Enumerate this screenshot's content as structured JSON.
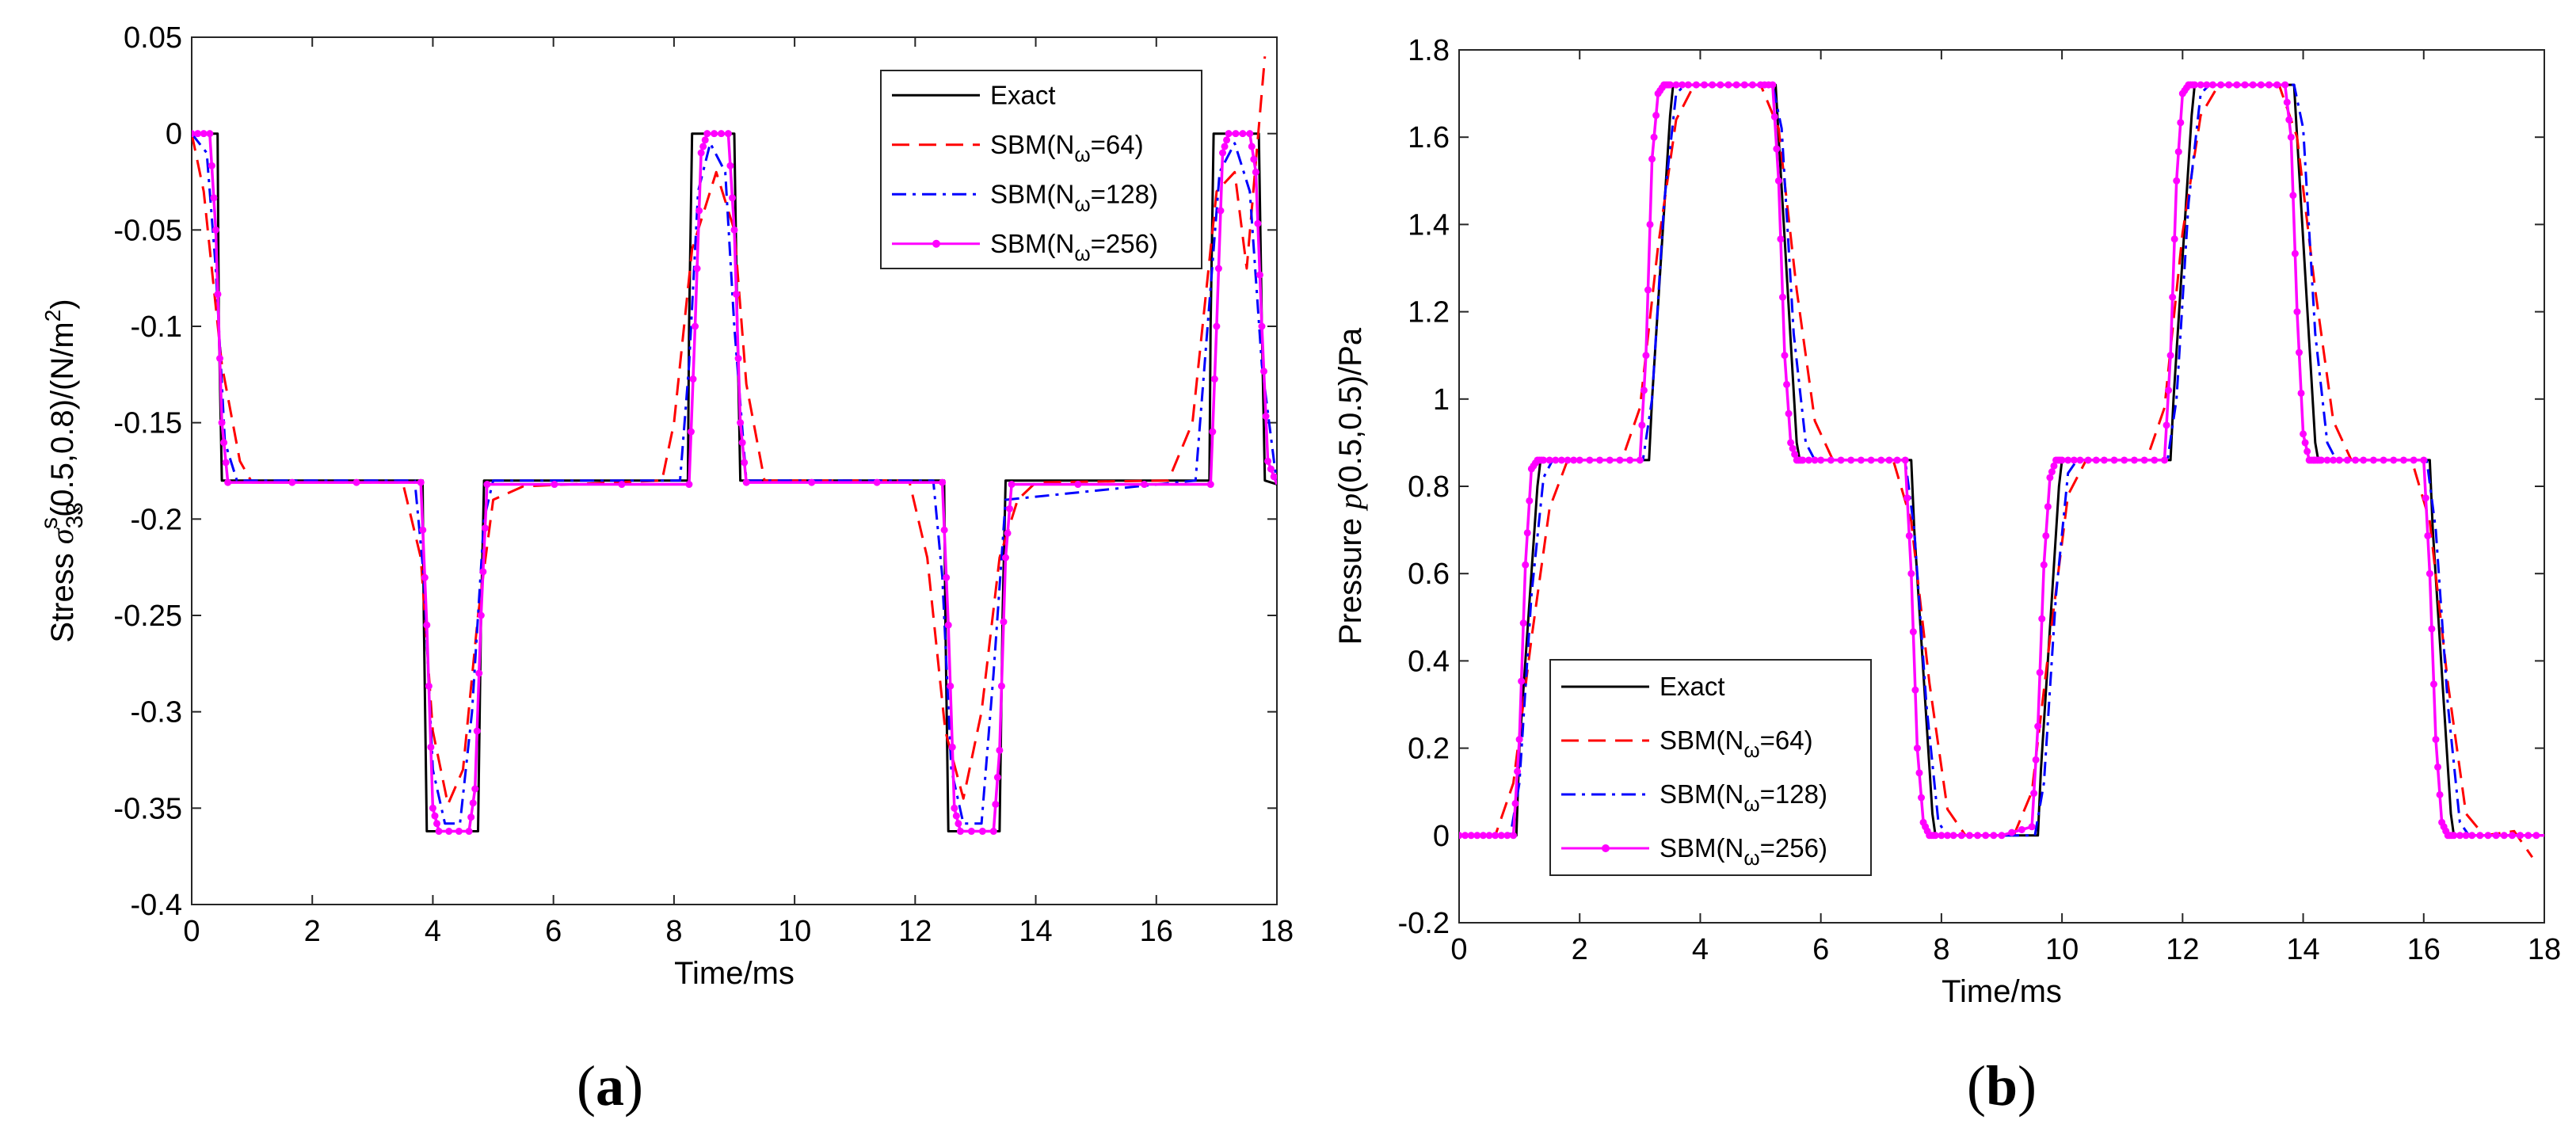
{
  "chart_data": [
    {
      "type": "line",
      "panel_label": "(a)",
      "xlabel": "Time/ms",
      "ylabel_parts": {
        "prefix": "Stress ",
        "symbol": "σ",
        "subscript": "33",
        "superscript": "s",
        "suffix": "(0.5,0.8)/(N/m",
        "unit_power": "2",
        "close": ")"
      },
      "xlim": [
        0,
        18
      ],
      "ylim": [
        -0.4,
        0.05
      ],
      "xticks": [
        0,
        2,
        4,
        6,
        8,
        10,
        12,
        14,
        16,
        18
      ],
      "xtick_labels": [
        "0",
        "2",
        "4",
        "6",
        "8",
        "10",
        "12",
        "14",
        "16",
        "18"
      ],
      "yticks": [
        -0.4,
        -0.35,
        -0.3,
        -0.25,
        -0.2,
        -0.15,
        -0.1,
        -0.05,
        0,
        0.05
      ],
      "ytick_labels": [
        "-0.4",
        "-0.35",
        "-0.3",
        "-0.25",
        "-0.2",
        "-0.15",
        "-0.1",
        "-0.05",
        "0",
        "0.05"
      ],
      "legend": {
        "position": "top-right"
      },
      "series": [
        {
          "name": "Exact",
          "label_parts": [
            "Exact"
          ],
          "color": "#000000",
          "style": "solid",
          "x": [
            0,
            0.43,
            0.45,
            0.5,
            3.83,
            3.85,
            3.9,
            4.75,
            4.8,
            4.85,
            8.23,
            8.25,
            8.3,
            9.0,
            9.05,
            9.1,
            12.48,
            12.5,
            12.55,
            13.4,
            13.45,
            13.5,
            16.88,
            16.9,
            16.95,
            17.7,
            17.75,
            17.8,
            18
          ],
          "y": [
            0,
            0,
            -0.1,
            -0.18,
            -0.18,
            -0.25,
            -0.362,
            -0.362,
            -0.25,
            -0.18,
            -0.18,
            -0.1,
            0,
            0,
            -0.1,
            -0.18,
            -0.18,
            -0.25,
            -0.362,
            -0.362,
            -0.25,
            -0.18,
            -0.18,
            -0.1,
            0,
            0,
            -0.1,
            -0.18,
            -0.182
          ]
        },
        {
          "name": "SBM(Nω=64)",
          "label_parts": [
            "SBM(N",
            "ω",
            "=64)"
          ],
          "color": "#ff0000",
          "style": "dashed",
          "x": [
            0,
            0.2,
            0.5,
            0.8,
            1.0,
            3.5,
            3.8,
            4.0,
            4.25,
            4.5,
            4.75,
            5.0,
            5.5,
            7.8,
            8.0,
            8.3,
            8.7,
            9.0,
            9.2,
            9.5,
            11.9,
            12.2,
            12.5,
            12.8,
            13.1,
            13.4,
            13.7,
            14.0,
            16.2,
            16.6,
            17.0,
            17.3,
            17.5,
            17.8
          ],
          "y": [
            0,
            -0.03,
            -0.12,
            -0.17,
            -0.181,
            -0.181,
            -0.22,
            -0.31,
            -0.348,
            -0.33,
            -0.25,
            -0.19,
            -0.183,
            -0.18,
            -0.15,
            -0.06,
            -0.02,
            -0.05,
            -0.13,
            -0.18,
            -0.18,
            -0.22,
            -0.31,
            -0.345,
            -0.3,
            -0.22,
            -0.19,
            -0.181,
            -0.18,
            -0.15,
            -0.03,
            -0.02,
            -0.07,
            0.04
          ]
        },
        {
          "name": "SBM(Nω=128)",
          "label_parts": [
            "SBM(N",
            "ω",
            "=128)"
          ],
          "color": "#0000ff",
          "style": "dashdot",
          "x": [
            0,
            0.25,
            0.4,
            0.55,
            0.75,
            3.7,
            3.85,
            4.0,
            4.2,
            4.45,
            4.65,
            4.85,
            5.0,
            8.1,
            8.25,
            8.4,
            8.6,
            8.85,
            9.0,
            9.2,
            12.3,
            12.45,
            12.6,
            12.8,
            13.1,
            13.3,
            13.5,
            16.65,
            16.85,
            17.05,
            17.3,
            17.55,
            17.75,
            18
          ],
          "y": [
            0,
            -0.01,
            -0.07,
            -0.16,
            -0.18,
            -0.18,
            -0.23,
            -0.33,
            -0.358,
            -0.358,
            -0.3,
            -0.2,
            -0.18,
            -0.18,
            -0.12,
            -0.03,
            -0.005,
            -0.02,
            -0.1,
            -0.18,
            -0.18,
            -0.23,
            -0.33,
            -0.358,
            -0.358,
            -0.28,
            -0.19,
            -0.18,
            -0.1,
            -0.02,
            -0.005,
            -0.03,
            -0.12,
            -0.182
          ]
        },
        {
          "name": "SBM(Nω=256)",
          "label_parts": [
            "SBM(N",
            "ω",
            "=256)"
          ],
          "color": "#ff00ff",
          "style": "solid-dots",
          "x": [
            0,
            0.3,
            0.4,
            0.5,
            0.6,
            3.8,
            3.9,
            4.0,
            4.1,
            4.6,
            4.7,
            4.8,
            4.9,
            8.25,
            8.35,
            8.45,
            8.55,
            8.9,
            9.0,
            9.1,
            9.2,
            12.45,
            12.55,
            12.65,
            12.75,
            13.3,
            13.4,
            13.5,
            13.6,
            16.9,
            17.0,
            17.1,
            17.2,
            17.55,
            17.65,
            17.75,
            17.85,
            18
          ],
          "y": [
            0,
            0,
            -0.05,
            -0.15,
            -0.181,
            -0.181,
            -0.255,
            -0.35,
            -0.362,
            -0.362,
            -0.34,
            -0.25,
            -0.182,
            -0.182,
            -0.1,
            -0.01,
            0,
            0,
            -0.05,
            -0.15,
            -0.181,
            -0.181,
            -0.255,
            -0.35,
            -0.362,
            -0.362,
            -0.32,
            -0.22,
            -0.182,
            -0.182,
            -0.1,
            -0.01,
            0,
            0,
            -0.02,
            -0.1,
            -0.17,
            -0.182
          ]
        }
      ]
    },
    {
      "type": "line",
      "panel_label": "(b)",
      "xlabel": "Time/ms",
      "ylabel_parts": {
        "prefix": "Pressure ",
        "symbol": "p",
        "suffix": "(0.5,0.5)/Pa"
      },
      "xlim": [
        0,
        18
      ],
      "ylim": [
        -0.2,
        1.8
      ],
      "xticks": [
        0,
        2,
        4,
        6,
        8,
        10,
        12,
        14,
        16,
        18
      ],
      "xtick_labels": [
        "0",
        "2",
        "4",
        "6",
        "8",
        "10",
        "12",
        "14",
        "16",
        "18"
      ],
      "yticks": [
        -0.2,
        0,
        0.2,
        0.4,
        0.6,
        0.8,
        1,
        1.2,
        1.4,
        1.6,
        1.8
      ],
      "ytick_labels": [
        "-0.2",
        "0",
        "0.2",
        "0.4",
        "0.6",
        "0.8",
        "1",
        "1.2",
        "1.4",
        "1.6",
        "1.8"
      ],
      "legend": {
        "position": "bottom-left"
      },
      "series": [
        {
          "name": "Exact",
          "label_parts": [
            "Exact"
          ],
          "color": "#000000",
          "style": "solid",
          "x": [
            0,
            0.95,
            1.0,
            1.3,
            1.35,
            3.15,
            3.2,
            3.5,
            3.55,
            5.25,
            5.3,
            5.6,
            5.65,
            7.5,
            7.55,
            7.85,
            7.9,
            9.6,
            9.65,
            9.95,
            10.0,
            11.8,
            11.85,
            12.15,
            12.2,
            13.85,
            13.9,
            14.2,
            14.25,
            16.1,
            16.15,
            16.45,
            16.5,
            18
          ],
          "y": [
            0,
            0,
            0.2,
            0.8,
            0.86,
            0.86,
            1.0,
            1.65,
            1.72,
            1.72,
            1.6,
            0.9,
            0.86,
            0.86,
            0.7,
            0.05,
            0,
            0,
            0.15,
            0.8,
            0.86,
            0.86,
            1.0,
            1.65,
            1.72,
            1.72,
            1.6,
            0.9,
            0.86,
            0.86,
            0.7,
            0.05,
            0,
            0
          ]
        },
        {
          "name": "SBM(Nω=64)",
          "label_parts": [
            "SBM(N",
            "ω",
            "=64)"
          ],
          "color": "#ff0000",
          "style": "dashed",
          "x": [
            0,
            0.6,
            0.9,
            1.2,
            1.5,
            1.8,
            2.7,
            3.0,
            3.3,
            3.6,
            3.9,
            5.0,
            5.3,
            5.6,
            5.9,
            6.2,
            7.2,
            7.5,
            7.8,
            8.1,
            8.4,
            9.2,
            9.5,
            9.8,
            10.1,
            10.4,
            11.4,
            11.7,
            12.0,
            12.3,
            12.6,
            13.6,
            13.9,
            14.2,
            14.5,
            14.8,
            15.8,
            16.1,
            16.4,
            16.7,
            17.0,
            17.5,
            17.8
          ],
          "y": [
            0,
            0,
            0.12,
            0.45,
            0.75,
            0.86,
            0.86,
            0.98,
            1.35,
            1.64,
            1.72,
            1.72,
            1.62,
            1.25,
            0.95,
            0.86,
            0.86,
            0.72,
            0.35,
            0.06,
            0,
            0,
            0.1,
            0.45,
            0.78,
            0.86,
            0.86,
            0.98,
            1.38,
            1.65,
            1.72,
            1.72,
            1.6,
            1.25,
            0.95,
            0.86,
            0.86,
            0.72,
            0.35,
            0.05,
            0,
            0.01,
            -0.05
          ]
        },
        {
          "name": "SBM(Nω=128)",
          "label_parts": [
            "SBM(N",
            "ω",
            "=128)"
          ],
          "color": "#0000ff",
          "style": "dashdot",
          "x": [
            0,
            0.85,
            1.0,
            1.2,
            1.4,
            1.55,
            3.05,
            3.2,
            3.4,
            3.6,
            3.75,
            5.2,
            5.35,
            5.55,
            5.75,
            5.9,
            7.4,
            7.55,
            7.75,
            7.95,
            8.1,
            9.55,
            9.7,
            9.9,
            10.1,
            10.25,
            11.75,
            11.9,
            12.1,
            12.3,
            12.45,
            13.85,
            14.0,
            14.2,
            14.4,
            14.55,
            16.05,
            16.2,
            16.4,
            16.6,
            16.75,
            18
          ],
          "y": [
            0,
            0,
            0.12,
            0.55,
            0.82,
            0.86,
            0.86,
            1.0,
            1.45,
            1.7,
            1.72,
            1.72,
            1.62,
            1.15,
            0.9,
            0.86,
            0.86,
            0.7,
            0.3,
            0.03,
            0,
            0,
            0.12,
            0.55,
            0.83,
            0.86,
            0.86,
            1.0,
            1.45,
            1.7,
            1.72,
            1.72,
            1.62,
            1.15,
            0.9,
            0.86,
            0.86,
            0.7,
            0.3,
            0.03,
            0,
            0
          ]
        },
        {
          "name": "SBM(Nω=256)",
          "label_parts": [
            "SBM(N",
            "ω",
            "=256)"
          ],
          "color": "#ff00ff",
          "style": "solid-dots",
          "x": [
            0,
            0.3,
            0.6,
            0.9,
            1.0,
            1.1,
            1.2,
            1.3,
            1.4,
            1.7,
            2.0,
            2.5,
            3.0,
            3.1,
            3.2,
            3.3,
            3.4,
            3.5,
            3.8,
            4.2,
            4.6,
            5.0,
            5.2,
            5.3,
            5.4,
            5.5,
            5.6,
            5.7,
            6.0,
            6.5,
            7.0,
            7.4,
            7.5,
            7.6,
            7.7,
            7.8,
            7.9,
            8.2,
            8.6,
            9.0,
            9.5,
            9.6,
            9.7,
            9.8,
            9.9,
            10.0,
            10.3,
            10.7,
            11.2,
            11.7,
            11.8,
            11.9,
            12.0,
            12.1,
            12.2,
            12.5,
            12.9,
            13.3,
            13.7,
            13.8,
            13.9,
            14.0,
            14.1,
            14.2,
            14.3,
            14.6,
            15.0,
            15.5,
            16.0,
            16.1,
            16.2,
            16.3,
            16.4,
            16.5,
            16.8,
            17.2,
            17.6,
            18
          ],
          "y": [
            0,
            0,
            0,
            0,
            0.22,
            0.62,
            0.84,
            0.86,
            0.86,
            0.86,
            0.86,
            0.86,
            0.86,
            1.1,
            1.55,
            1.7,
            1.72,
            1.72,
            1.72,
            1.72,
            1.72,
            1.72,
            1.72,
            1.5,
            1.1,
            0.9,
            0.86,
            0.86,
            0.86,
            0.86,
            0.86,
            0.86,
            0.6,
            0.2,
            0.03,
            0,
            0,
            0,
            0,
            0,
            0.02,
            0.25,
            0.62,
            0.82,
            0.86,
            0.86,
            0.86,
            0.86,
            0.86,
            0.86,
            1.1,
            1.5,
            1.7,
            1.72,
            1.72,
            1.72,
            1.72,
            1.72,
            1.72,
            1.6,
            1.2,
            0.92,
            0.86,
            0.86,
            0.86,
            0.86,
            0.86,
            0.86,
            0.86,
            0.6,
            0.22,
            0.03,
            0,
            0,
            0,
            0,
            0,
            0
          ]
        }
      ]
    }
  ]
}
